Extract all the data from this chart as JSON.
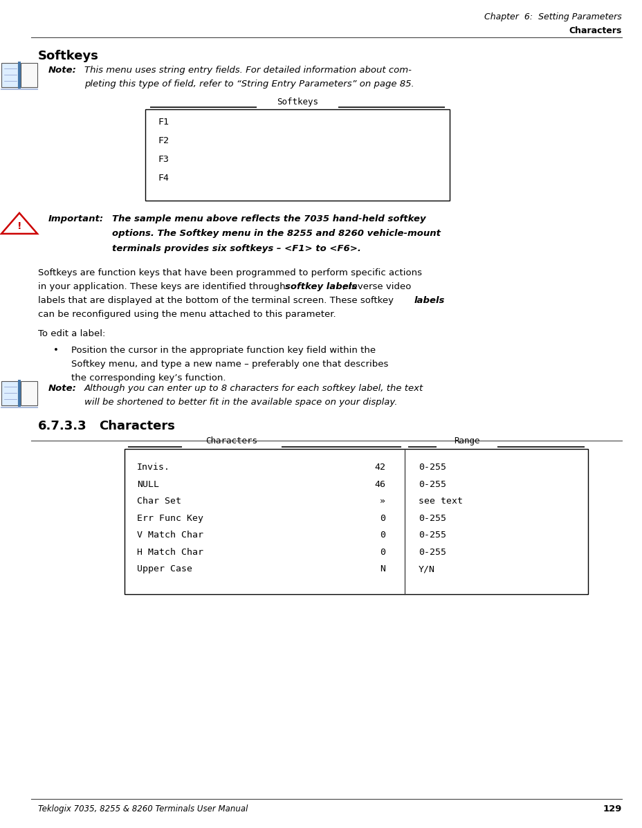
{
  "page_width": 9.29,
  "page_height": 11.97,
  "bg_color": "#ffffff",
  "header_line1": "Chapter  6:  Setting Parameters",
  "header_line2": "Characters",
  "section_title": "Softkeys",
  "note1_label": "Note:",
  "note1_line1": "This menu uses string entry fields. For detailed information about com-",
  "note1_line2": "pleting this type of field, refer to “String Entry Parameters” on page 85.",
  "softkeys_box_title": "Softkeys",
  "softkeys_box_lines": [
    "F1",
    "F2",
    "F3",
    "F4"
  ],
  "important_label": "Important:",
  "important_line1": "The sample menu above reflects the 7035 hand-held softkey",
  "important_line2": "options. The Softkey menu in the 8255 and 8260 vehicle-mount",
  "important_line3": "terminals provides six softkeys – <F1> to <F6>.",
  "body_line1": "Softkeys are function keys that have been programmed to perform specific actions",
  "body_line2a": "in your application. These keys are identified through ",
  "body_line2b": "softkey labels",
  "body_line2c": ", reverse video",
  "body_line3a": "labels that are displayed at the bottom of the terminal screen. These softkey ",
  "body_line3b": "labels",
  "body_line4": "can be reconfigured using the menu attached to this parameter.",
  "to_edit_label": "To edit a label:",
  "bullet_line1": "Position the cursor in the appropriate function key field within the",
  "bullet_line2": "Softkey menu, and type a new name – preferably one that describes",
  "bullet_line3": "the corresponding key’s function.",
  "note2_label": "Note:",
  "note2_line1": "Although you can enter up to 8 characters for each softkey label, the text",
  "note2_line2": "will be shortened to better fit in the available space on your display.",
  "subsection_num": "6.7.3.3",
  "subsection_title": "Characters",
  "chars_box_col1_title": "Characters",
  "chars_box_col2_title": "Range",
  "chars_box_rows": [
    [
      "Invis.",
      "42",
      "0-255"
    ],
    [
      "NULL",
      "46",
      "0-255"
    ],
    [
      "Char Set",
      "»",
      "see text"
    ],
    [
      "Err Func Key",
      "0",
      "0-255"
    ],
    [
      "V Match Char",
      "0",
      "0-255"
    ],
    [
      "H Match Char",
      "0",
      "0-255"
    ],
    [
      "Upper Case",
      "N",
      "Y/N"
    ]
  ],
  "footer_text": "Teklogix 7035, 8255 & 8260 Terminals User Manual",
  "footer_page": "129",
  "text_color": "#000000",
  "box_border_color": "#000000",
  "important_icon_color": "#cc0000"
}
